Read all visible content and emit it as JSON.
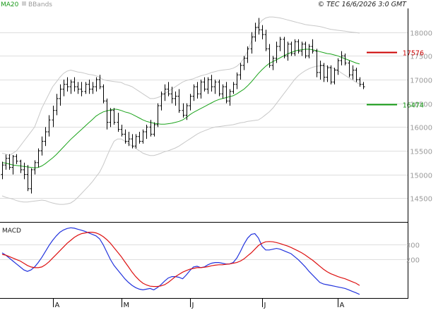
{
  "header": {
    "ma_label": "MA20",
    "bb_label": "BBands",
    "copyright": "© TEC 16/6/2026 3:0 GMT"
  },
  "macd_panel": {
    "label": "MACD"
  },
  "colors": {
    "bars": "#000000",
    "ma20": "#1aa31a",
    "bbands": "#c8c8c8",
    "resistance": "#cc0000",
    "support": "#119911",
    "macd_line": "#2233dd",
    "signal_line": "#dd1111",
    "grid": "#dedede",
    "axis": "#000000"
  },
  "chart_data": [
    {
      "type": "ohlc",
      "panel": "price",
      "ylim": [
        14000,
        18500
      ],
      "y_ticks": [
        "14500",
        "15000",
        "15500",
        "16000",
        "16500",
        "17000",
        "17500",
        "18000"
      ],
      "x_month_labels": [
        {
          "label": "A",
          "index": 14
        },
        {
          "label": "M",
          "index": 33
        },
        {
          "label": "J",
          "index": 52
        },
        {
          "label": "J",
          "index": 72
        },
        {
          "label": "A",
          "index": 93
        }
      ],
      "levels": [
        {
          "name": "resistance",
          "value": 17576,
          "label": "17576"
        },
        {
          "name": "support",
          "value": 16474,
          "label": "16474"
        }
      ],
      "ohlc": [
        [
          15000,
          15270,
          14900,
          15200
        ],
        [
          15200,
          15420,
          15100,
          15340
        ],
        [
          15340,
          15430,
          15100,
          15150
        ],
        [
          15150,
          15410,
          15000,
          15380
        ],
        [
          15380,
          15430,
          15220,
          15280
        ],
        [
          15280,
          15310,
          15030,
          15100
        ],
        [
          15100,
          15250,
          14900,
          15000
        ],
        [
          15000,
          15200,
          14650,
          14700
        ],
        [
          14700,
          15130,
          14600,
          15100
        ],
        [
          15100,
          15300,
          15000,
          15250
        ],
        [
          15250,
          15550,
          15150,
          15500
        ],
        [
          15500,
          15800,
          15400,
          15700
        ],
        [
          15700,
          16000,
          15600,
          15900
        ],
        [
          15900,
          16250,
          15800,
          16150
        ],
        [
          16150,
          16450,
          16000,
          16350
        ],
        [
          16350,
          16700,
          16250,
          16600
        ],
        [
          16600,
          16900,
          16450,
          16800
        ],
        [
          16800,
          17000,
          16650,
          16900
        ],
        [
          16900,
          17050,
          16750,
          16850
        ],
        [
          16850,
          17000,
          16700,
          16950
        ],
        [
          16950,
          17050,
          16750,
          16850
        ],
        [
          16850,
          16950,
          16700,
          16800
        ],
        [
          16800,
          16950,
          16650,
          16750
        ],
        [
          16750,
          16950,
          16700,
          16900
        ],
        [
          16900,
          17000,
          16700,
          16800
        ],
        [
          16800,
          16950,
          16700,
          16850
        ],
        [
          16850,
          17050,
          16750,
          17000
        ],
        [
          17000,
          17100,
          16800,
          16850
        ],
        [
          16850,
          16900,
          16500,
          16550
        ],
        [
          16550,
          16600,
          15950,
          16100
        ],
        [
          16100,
          16400,
          16000,
          16350
        ],
        [
          16350,
          16400,
          16050,
          16100
        ],
        [
          16100,
          16300,
          15900,
          15950
        ],
        [
          15950,
          16050,
          15800,
          15850
        ],
        [
          15850,
          15950,
          15650,
          15700
        ],
        [
          15700,
          15900,
          15600,
          15750
        ],
        [
          15750,
          15850,
          15550,
          15600
        ],
        [
          15600,
          15850,
          15550,
          15800
        ],
        [
          15800,
          15900,
          15650,
          15700
        ],
        [
          15700,
          15950,
          15650,
          15900
        ],
        [
          15900,
          16050,
          15750,
          16000
        ],
        [
          16000,
          16150,
          15800,
          15850
        ],
        [
          15850,
          16100,
          15800,
          16050
        ],
        [
          16050,
          16500,
          16000,
          16450
        ],
        [
          16450,
          16750,
          16350,
          16700
        ],
        [
          16700,
          16900,
          16550,
          16800
        ],
        [
          16800,
          16950,
          16650,
          16700
        ],
        [
          16700,
          16850,
          16500,
          16600
        ],
        [
          16600,
          16750,
          16450,
          16650
        ],
        [
          16650,
          16800,
          16300,
          16350
        ],
        [
          16350,
          16500,
          16200,
          16250
        ],
        [
          16250,
          16500,
          16150,
          16450
        ],
        [
          16450,
          16700,
          16350,
          16650
        ],
        [
          16650,
          16900,
          16550,
          16850
        ],
        [
          16850,
          16950,
          16600,
          16700
        ],
        [
          16700,
          17000,
          16600,
          16950
        ],
        [
          16950,
          17050,
          16750,
          16800
        ],
        [
          16800,
          17050,
          16700,
          17000
        ],
        [
          17000,
          17100,
          16750,
          16850
        ],
        [
          16850,
          17000,
          16700,
          16950
        ],
        [
          16950,
          17000,
          16650,
          16700
        ],
        [
          16700,
          16900,
          16600,
          16850
        ],
        [
          16850,
          16950,
          16500,
          16550
        ],
        [
          16550,
          16800,
          16450,
          16750
        ],
        [
          16750,
          16950,
          16700,
          16900
        ],
        [
          16900,
          17150,
          16800,
          17100
        ],
        [
          17100,
          17350,
          17000,
          17300
        ],
        [
          17300,
          17500,
          17200,
          17450
        ],
        [
          17450,
          17700,
          17350,
          17650
        ],
        [
          17650,
          18000,
          17550,
          17900
        ],
        [
          17900,
          18200,
          17800,
          18100
        ],
        [
          18100,
          18300,
          17950,
          18050
        ],
        [
          18050,
          18150,
          17850,
          17950
        ],
        [
          17950,
          18050,
          17600,
          17650
        ],
        [
          17650,
          17750,
          17250,
          17300
        ],
        [
          17300,
          17500,
          17200,
          17450
        ],
        [
          17450,
          17800,
          17350,
          17700
        ],
        [
          17700,
          17900,
          17600,
          17850
        ],
        [
          17850,
          17900,
          17450,
          17500
        ],
        [
          17500,
          17800,
          17400,
          17750
        ],
        [
          17750,
          17800,
          17500,
          17550
        ],
        [
          17550,
          17850,
          17500,
          17800
        ],
        [
          17800,
          17850,
          17550,
          17600
        ],
        [
          17600,
          17800,
          17500,
          17750
        ],
        [
          17750,
          17800,
          17450,
          17500
        ],
        [
          17500,
          17750,
          17450,
          17700
        ],
        [
          17700,
          17850,
          17550,
          17600
        ],
        [
          17600,
          17650,
          17050,
          17150
        ],
        [
          17150,
          17400,
          17000,
          17300
        ],
        [
          17300,
          17350,
          16950,
          17050
        ],
        [
          17050,
          17300,
          16950,
          17250
        ],
        [
          17250,
          17300,
          16900,
          16950
        ],
        [
          16950,
          17250,
          16900,
          17200
        ],
        [
          17200,
          17450,
          17100,
          17400
        ],
        [
          17400,
          17600,
          17300,
          17500
        ],
        [
          17500,
          17550,
          17300,
          17350
        ],
        [
          17350,
          17400,
          17050,
          17100
        ],
        [
          17100,
          17300,
          17000,
          17200
        ],
        [
          17200,
          17250,
          16950,
          17000
        ],
        [
          17000,
          17050,
          16850,
          16900
        ],
        [
          16900,
          16950,
          16800,
          16850
        ]
      ],
      "ma20": [
        15250,
        15240,
        15220,
        15200,
        15190,
        15180,
        15170,
        15160,
        15150,
        15140,
        15150,
        15180,
        15230,
        15290,
        15350,
        15420,
        15500,
        15580,
        15660,
        15740,
        15810,
        15880,
        15950,
        16020,
        16090,
        16160,
        16230,
        16280,
        16320,
        16340,
        16360,
        16380,
        16370,
        16350,
        16320,
        16300,
        16270,
        16230,
        16190,
        16150,
        16120,
        16100,
        16080,
        16070,
        16060,
        16060,
        16070,
        16080,
        16100,
        16120,
        16150,
        16200,
        16260,
        16310,
        16350,
        16390,
        16430,
        16470,
        16510,
        16550,
        16580,
        16600,
        16620,
        16640,
        16660,
        16700,
        16750,
        16800,
        16870,
        16950,
        17040,
        17130,
        17210,
        17280,
        17340,
        17380,
        17420,
        17460,
        17500,
        17540,
        17570,
        17600,
        17620,
        17630,
        17640,
        17640,
        17630,
        17610,
        17590,
        17570,
        17550,
        17540,
        17520,
        17500,
        17470,
        17440,
        17410,
        17380,
        17350,
        17330
      ],
      "bb_upper": [
        15450,
        15430,
        15400,
        15450,
        15500,
        15600,
        15700,
        15800,
        15900,
        16000,
        16200,
        16400,
        16550,
        16700,
        16850,
        16950,
        17050,
        17130,
        17180,
        17200,
        17180,
        17160,
        17150,
        17130,
        17110,
        17100,
        17080,
        17050,
        17000,
        16980,
        16970,
        16960,
        16950,
        16940,
        16900,
        16880,
        16850,
        16800,
        16750,
        16700,
        16650,
        16600,
        16600,
        16620,
        16650,
        16700,
        16750,
        16800,
        16850,
        16900,
        16950,
        16980,
        17000,
        17020,
        17050,
        17080,
        17100,
        17120,
        17150,
        17170,
        17190,
        17200,
        17210,
        17220,
        17240,
        17280,
        17350,
        17450,
        17600,
        17800,
        18000,
        18150,
        18250,
        18300,
        18320,
        18320,
        18310,
        18300,
        18280,
        18260,
        18240,
        18220,
        18200,
        18180,
        18160,
        18150,
        18140,
        18130,
        18120,
        18100,
        18080,
        18060,
        18050,
        18040,
        18030,
        18020,
        18010,
        18000,
        17990,
        17980
      ],
      "bb_lower": [
        14550,
        14520,
        14500,
        14480,
        14450,
        14430,
        14420,
        14420,
        14430,
        14440,
        14450,
        14460,
        14450,
        14420,
        14400,
        14380,
        14370,
        14370,
        14380,
        14400,
        14450,
        14520,
        14600,
        14680,
        14760,
        14850,
        14950,
        15050,
        15200,
        15380,
        15550,
        15700,
        15750,
        15750,
        15700,
        15650,
        15600,
        15550,
        15500,
        15450,
        15420,
        15400,
        15400,
        15420,
        15450,
        15480,
        15500,
        15530,
        15560,
        15600,
        15650,
        15700,
        15750,
        15800,
        15850,
        15890,
        15920,
        15950,
        15980,
        16000,
        16010,
        16020,
        16030,
        16040,
        16050,
        16070,
        16090,
        16100,
        16120,
        16130,
        16140,
        16150,
        16200,
        16260,
        16320,
        16400,
        16500,
        16600,
        16700,
        16800,
        16900,
        17000,
        17080,
        17140,
        17190,
        17230,
        17260,
        17280,
        17290,
        17290,
        17280,
        17260,
        17230,
        17190,
        17140,
        17090,
        17040,
        16990,
        16950,
        16900
      ]
    },
    {
      "type": "line",
      "panel": "macd",
      "ylim": [
        -60,
        440
      ],
      "y_ticks": [
        "200",
        "300"
      ],
      "series": [
        {
          "name": "macd",
          "values": [
            245,
            230,
            210,
            190,
            170,
            150,
            130,
            120,
            130,
            150,
            180,
            215,
            255,
            295,
            330,
            360,
            385,
            400,
            410,
            415,
            412,
            405,
            398,
            390,
            380,
            370,
            360,
            340,
            300,
            250,
            200,
            160,
            130,
            100,
            70,
            45,
            25,
            10,
            0,
            -5,
            0,
            5,
            -5,
            10,
            30,
            55,
            75,
            85,
            85,
            80,
            70,
            95,
            125,
            150,
            155,
            145,
            150,
            165,
            175,
            180,
            180,
            175,
            170,
            170,
            180,
            210,
            255,
            305,
            345,
            370,
            375,
            345,
            290,
            265,
            265,
            270,
            275,
            270,
            260,
            250,
            240,
            220,
            200,
            175,
            150,
            120,
            95,
            70,
            45,
            35,
            30,
            25,
            20,
            15,
            10,
            5,
            -5,
            -15,
            -25,
            -35
          ]
        },
        {
          "name": "signal",
          "values": [
            235,
            230,
            220,
            210,
            200,
            190,
            175,
            160,
            150,
            145,
            145,
            150,
            165,
            185,
            210,
            235,
            260,
            285,
            310,
            330,
            350,
            365,
            375,
            380,
            385,
            385,
            380,
            370,
            355,
            335,
            310,
            280,
            250,
            220,
            185,
            150,
            115,
            85,
            60,
            40,
            28,
            20,
            18,
            18,
            22,
            30,
            45,
            65,
            85,
            100,
            115,
            125,
            135,
            140,
            145,
            145,
            148,
            152,
            158,
            162,
            165,
            165,
            168,
            170,
            175,
            180,
            190,
            205,
            225,
            245,
            270,
            295,
            310,
            320,
            322,
            320,
            315,
            308,
            300,
            292,
            282,
            270,
            258,
            245,
            230,
            212,
            195,
            175,
            155,
            135,
            118,
            105,
            95,
            85,
            77,
            70,
            60,
            50,
            40,
            25
          ]
        }
      ]
    }
  ]
}
